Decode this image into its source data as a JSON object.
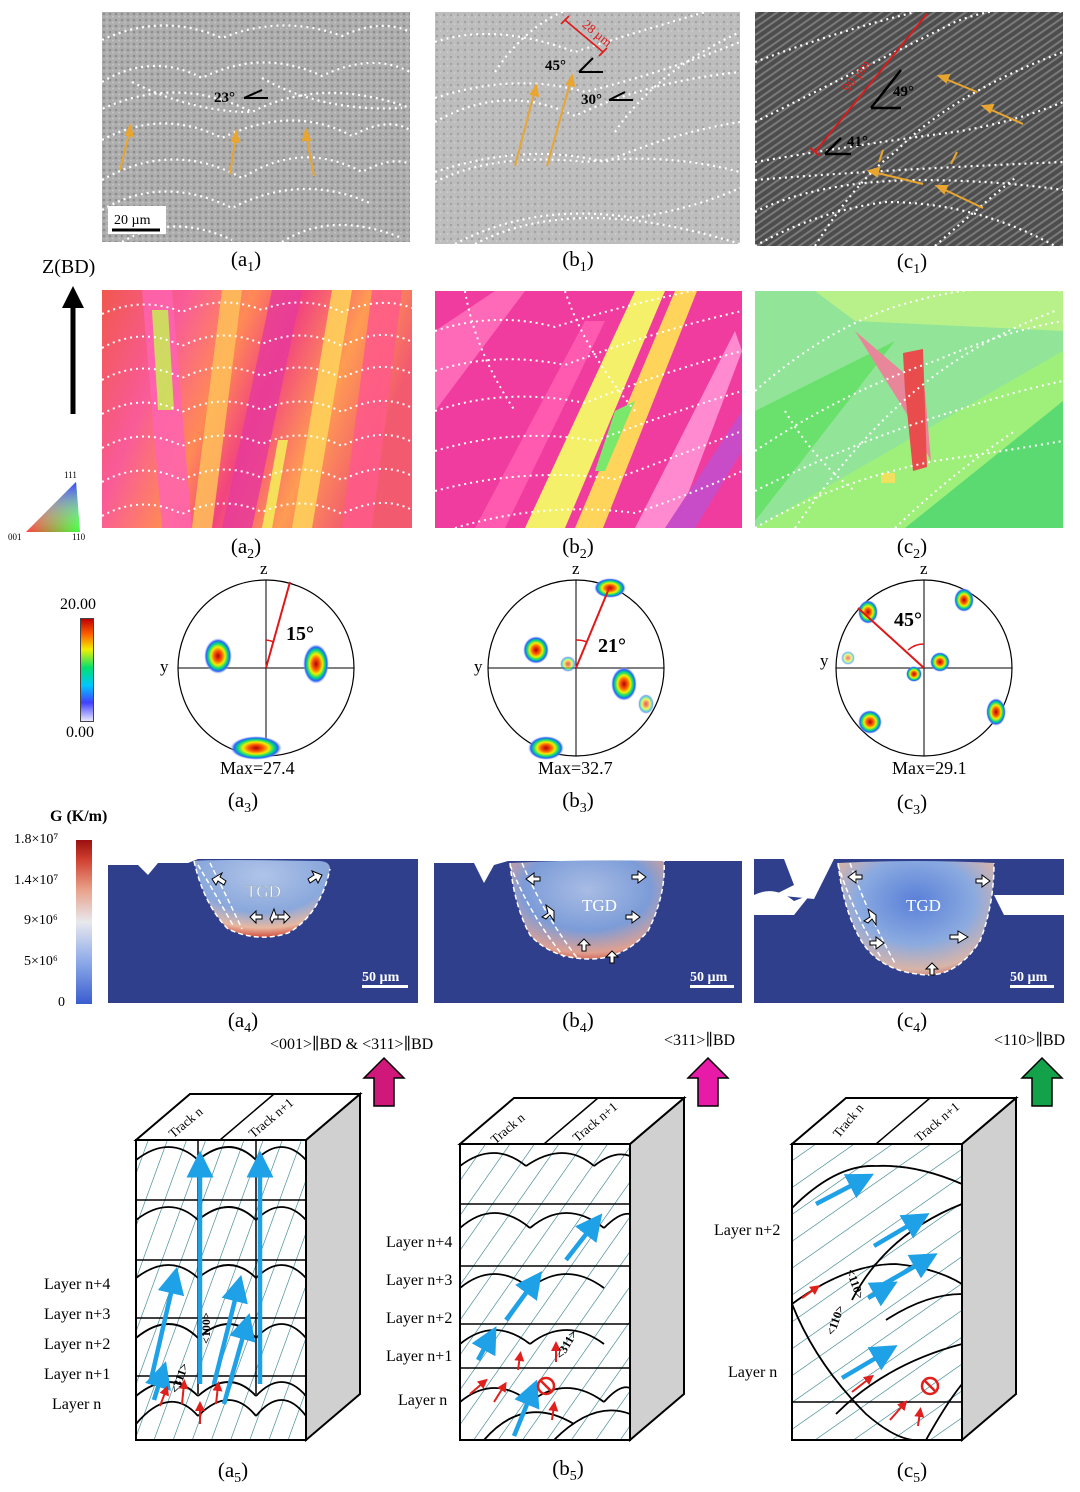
{
  "row1": {
    "a": {
      "caption_main": "(a",
      "caption_sub": "1",
      "caption_end": ")",
      "angle": "23°",
      "scalebar": "20 µm"
    },
    "b": {
      "caption_main": "(b",
      "caption_sub": "1",
      "caption_end": ")",
      "angle1": "45°",
      "angle2": "30°",
      "dim": "28 µm"
    },
    "c": {
      "caption_main": "(c",
      "caption_sub": "1",
      "caption_end": ")",
      "angle1": "49°",
      "angle2": "41°",
      "dim": "90 µm"
    }
  },
  "axis": {
    "label": "Z(BD)"
  },
  "ipf_key": {
    "top": "111",
    "left": "001",
    "right": "110"
  },
  "row2": {
    "a": {
      "caption_main": "(a",
      "caption_sub": "2",
      "caption_end": ")"
    },
    "b": {
      "caption_main": "(b",
      "caption_sub": "2",
      "caption_end": ")"
    },
    "c": {
      "caption_main": "(c",
      "caption_sub": "2",
      "caption_end": ")"
    }
  },
  "pf_scale": {
    "max": "20.00",
    "min": "0.00"
  },
  "row3": {
    "a": {
      "z": "z",
      "y": "y",
      "angle": "15°",
      "max": "Max=27.4",
      "caption_main": "(a",
      "caption_sub": "3",
      "caption_end": ")"
    },
    "b": {
      "z": "z",
      "y": "y",
      "angle": "21°",
      "max": "Max=32.7",
      "caption_main": "(b",
      "caption_sub": "3",
      "caption_end": ")"
    },
    "c": {
      "z": "z",
      "y": "y",
      "angle": "45°",
      "max": "Max=29.1",
      "caption_main": "(c",
      "caption_sub": "3",
      "caption_end": ")"
    }
  },
  "g_scale": {
    "title": "G (K/m)",
    "ticks": [
      "1.8×10⁷",
      "1.4×10⁷",
      "9×10⁶",
      "5×10⁶",
      "0"
    ]
  },
  "row4": {
    "a": {
      "tgd": "TGD",
      "scalebar": "50 µm",
      "caption_main": "(a",
      "caption_sub": "4",
      "caption_end": ")"
    },
    "b": {
      "tgd": "TGD",
      "scalebar": "50 µm",
      "caption_main": "(b",
      "caption_sub": "4",
      "caption_end": ")"
    },
    "c": {
      "tgd": "TGD",
      "scalebar": "50 µm",
      "caption_main": "(c",
      "caption_sub": "4",
      "caption_end": ")"
    }
  },
  "row5": {
    "a": {
      "arrow_label": "<001>∥BD & <311>∥BD",
      "arrow_color": "#d0187a",
      "track1": "Track n",
      "track2": "Track n+1",
      "layers": [
        "Layer n+4",
        "Layer n+3",
        "Layer n+2",
        "Layer n+1",
        "Layer n"
      ],
      "dir1": "<311>",
      "dir2": "<100>",
      "caption_main": "(a",
      "caption_sub": "5",
      "caption_end": ")"
    },
    "b": {
      "arrow_label": "<311>∥BD",
      "arrow_color": "#e81aa8",
      "track1": "Track n",
      "track2": "Track n+1",
      "layers": [
        "Layer n+4",
        "Layer n+3",
        "Layer n+2",
        "Layer n+1",
        "Layer n"
      ],
      "dir1": "<311>",
      "caption_main": "(b",
      "caption_sub": "5",
      "caption_end": ")"
    },
    "c": {
      "arrow_label": "<110>∥BD",
      "arrow_color": "#13a14a",
      "track1": "Track n",
      "track2": "Track n+1",
      "layers": [
        "Layer n+2",
        "Layer n"
      ],
      "dir1": "<110>",
      "dir2": "<110>",
      "caption_main": "(c",
      "caption_sub": "5",
      "caption_end": ")"
    }
  },
  "colors": {
    "pool_blue": "#2f3f8c",
    "blue_arrow": "#1ea1e6",
    "red_arrow": "#e0201c",
    "hatch": "#2a7a86"
  }
}
